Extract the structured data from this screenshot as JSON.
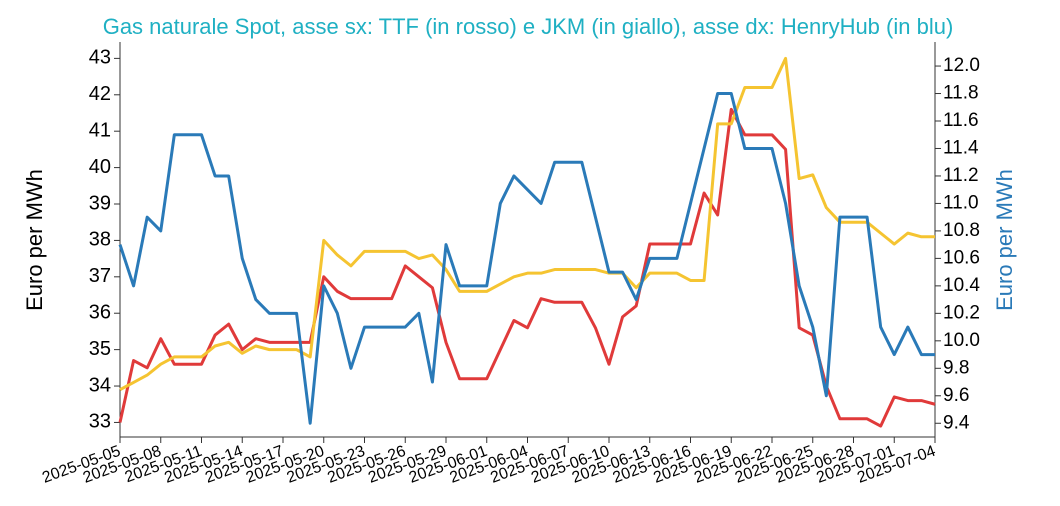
{
  "chart_data": {
    "type": "line",
    "title": "Gas naturale Spot, asse sx: TTF (in rosso) e JKM (in giallo), asse dx: HenryHub (in blu)",
    "ylabel": "Euro per MWh",
    "y2label": "Euro per MWh",
    "x": [
      "2025-05-05",
      "2025-05-06",
      "2025-05-07",
      "2025-05-08",
      "2025-05-09",
      "2025-05-10",
      "2025-05-11",
      "2025-05-12",
      "2025-05-13",
      "2025-05-14",
      "2025-05-15",
      "2025-05-16",
      "2025-05-17",
      "2025-05-18",
      "2025-05-19",
      "2025-05-20",
      "2025-05-21",
      "2025-05-22",
      "2025-05-23",
      "2025-05-24",
      "2025-05-25",
      "2025-05-26",
      "2025-05-27",
      "2025-05-28",
      "2025-05-29",
      "2025-05-30",
      "2025-05-31",
      "2025-06-01",
      "2025-06-02",
      "2025-06-03",
      "2025-06-04",
      "2025-06-05",
      "2025-06-06",
      "2025-06-07",
      "2025-06-08",
      "2025-06-09",
      "2025-06-10",
      "2025-06-11",
      "2025-06-12",
      "2025-06-13",
      "2025-06-14",
      "2025-06-15",
      "2025-06-16",
      "2025-06-17",
      "2025-06-18",
      "2025-06-19",
      "2025-06-20",
      "2025-06-21",
      "2025-06-22",
      "2025-06-23",
      "2025-06-24",
      "2025-06-25",
      "2025-06-26",
      "2025-06-27",
      "2025-06-28",
      "2025-06-29",
      "2025-06-30",
      "2025-07-01",
      "2025-07-02",
      "2025-07-03",
      "2025-07-04"
    ],
    "xticks": [
      "2025-05-05",
      "2025-05-08",
      "2025-05-11",
      "2025-05-14",
      "2025-05-17",
      "2025-05-20",
      "2025-05-23",
      "2025-05-26",
      "2025-05-29",
      "2025-06-01",
      "2025-06-04",
      "2025-06-07",
      "2025-06-10",
      "2025-06-13",
      "2025-06-16",
      "2025-06-19",
      "2025-06-22",
      "2025-06-25",
      "2025-06-28",
      "2025-07-01",
      "2025-07-04"
    ],
    "series": [
      {
        "color": "#e03a3a",
        "axis": "y",
        "values": [
          33.0,
          34.7,
          34.5,
          35.3,
          34.6,
          34.6,
          34.6,
          35.4,
          35.7,
          35.0,
          35.3,
          35.2,
          35.2,
          35.2,
          35.2,
          37.0,
          36.6,
          36.4,
          36.4,
          36.4,
          36.4,
          37.3,
          37.0,
          36.7,
          35.2,
          34.2,
          34.2,
          34.2,
          35.0,
          35.8,
          35.6,
          36.4,
          36.3,
          36.3,
          36.3,
          35.6,
          34.6,
          35.9,
          36.2,
          37.9,
          37.9,
          37.9,
          37.9,
          39.3,
          38.7,
          41.6,
          40.9,
          40.9,
          40.9,
          40.5,
          35.6,
          35.4,
          34.0,
          33.1,
          33.1,
          33.1,
          32.9,
          33.7,
          33.6,
          33.6,
          33.5
        ]
      },
      {
        "color": "#f5c431",
        "axis": "y",
        "values": [
          33.9,
          34.1,
          34.3,
          34.6,
          34.8,
          34.8,
          34.8,
          35.1,
          35.2,
          34.9,
          35.1,
          35.0,
          35.0,
          35.0,
          34.8,
          38.0,
          37.6,
          37.3,
          37.7,
          37.7,
          37.7,
          37.7,
          37.5,
          37.6,
          37.2,
          36.6,
          36.6,
          36.6,
          36.8,
          37.0,
          37.1,
          37.1,
          37.2,
          37.2,
          37.2,
          37.2,
          37.1,
          37.1,
          36.7,
          37.1,
          37.1,
          37.1,
          36.9,
          36.9,
          41.2,
          41.2,
          42.2,
          42.2,
          42.2,
          43.0,
          39.7,
          39.8,
          38.9,
          38.5,
          38.5,
          38.5,
          38.2,
          37.9,
          38.2,
          38.1,
          38.1
        ]
      },
      {
        "color": "#2a7ab8",
        "axis": "y2",
        "values": [
          10.7,
          10.4,
          10.9,
          10.8,
          11.5,
          11.5,
          11.5,
          11.2,
          11.2,
          10.6,
          10.3,
          10.2,
          10.2,
          10.2,
          9.4,
          10.4,
          10.2,
          9.8,
          10.1,
          10.1,
          10.1,
          10.1,
          10.2,
          9.7,
          10.7,
          10.4,
          10.4,
          10.4,
          11.0,
          11.2,
          11.1,
          11.0,
          11.3,
          11.3,
          11.3,
          10.9,
          10.5,
          10.5,
          10.3,
          10.6,
          10.6,
          10.6,
          11.0,
          11.4,
          11.8,
          11.8,
          11.4,
          11.4,
          11.4,
          11.0,
          10.4,
          10.1,
          9.6,
          10.9,
          10.9,
          10.9,
          10.1,
          9.9,
          10.1,
          9.9,
          9.9
        ]
      }
    ],
    "ylim": [
      32.6,
      43.45
    ],
    "yticks": [
      33,
      34,
      35,
      36,
      37,
      38,
      39,
      40,
      41,
      42,
      43
    ],
    "y2lim": [
      9.3,
      12.175
    ],
    "y2ticks": [
      9.4,
      9.6,
      9.8,
      {
        "value": 10,
        "label": "10.0"
      },
      10.2,
      10.4,
      10.6,
      10.8,
      {
        "value": 11,
        "label": "11.0"
      },
      11.2,
      11.4,
      11.6,
      11.8,
      {
        "value": 12,
        "label": "12.0"
      }
    ],
    "grid": false
  }
}
